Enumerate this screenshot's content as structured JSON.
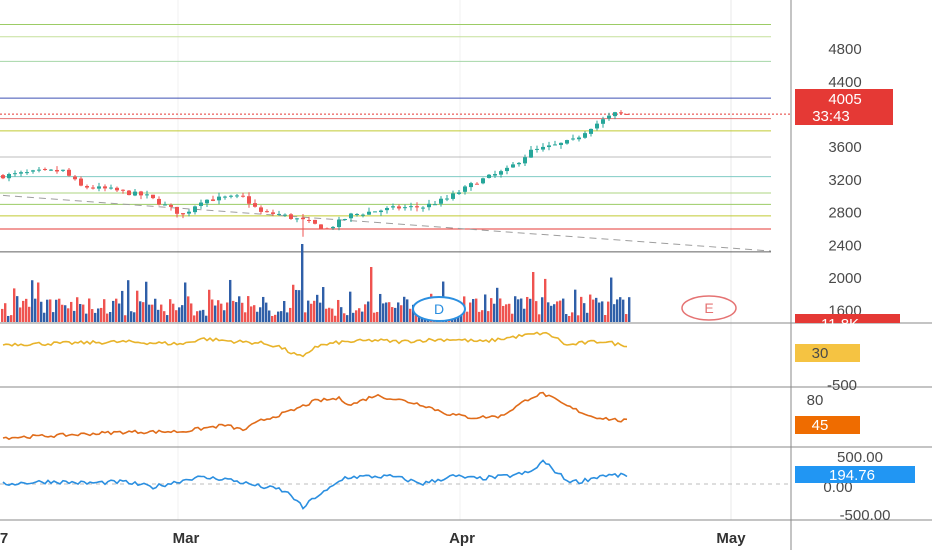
{
  "chart_data": [
    {
      "type": "candlestick",
      "pane": "price",
      "title": "",
      "y_ticks": [
        "4800",
        "4400",
        "3600",
        "3200",
        "2800",
        "2400",
        "2000",
        "1600"
      ],
      "ylim": [
        1450,
        5400
      ],
      "x_ticks": [
        "7",
        "Mar",
        "Apr",
        "May"
      ],
      "last_price": "4005",
      "countdown": "33:43",
      "colors": {
        "up": "#26a69a",
        "down": "#ef5350",
        "last": "#e53935"
      },
      "horizontal_levels": [
        {
          "value": 5100,
          "color": "#9ccc65"
        },
        {
          "value": 4950,
          "color": "#c6e09c"
        },
        {
          "value": 4650,
          "color": "#a5d6a7"
        },
        {
          "value": 4200,
          "color": "#3f51b5"
        },
        {
          "value": 3950,
          "color": "#e57373"
        },
        {
          "value": 3800,
          "color": "#c0ca33"
        },
        {
          "value": 3480,
          "color": "#bdbdbd"
        },
        {
          "value": 3240,
          "color": "#80cbc4"
        },
        {
          "value": 3040,
          "color": "#aed581"
        },
        {
          "value": 2900,
          "color": "#9ccc65"
        },
        {
          "value": 2760,
          "color": "#c0ca33"
        },
        {
          "value": 2600,
          "color": "#e53935"
        },
        {
          "value": 2320,
          "color": "#616161"
        }
      ],
      "trendline": {
        "from": [
          0,
          3010
        ],
        "to": [
          104,
          2330
        ],
        "color": "#9e9e9e",
        "style": "dashed"
      },
      "ohlc_key_points": [
        [
          0,
          3250
        ],
        [
          6,
          3300
        ],
        [
          10,
          3310
        ],
        [
          13,
          3120
        ],
        [
          18,
          3080
        ],
        [
          24,
          3000
        ],
        [
          30,
          2770
        ],
        [
          33,
          2950
        ],
        [
          37,
          2980
        ],
        [
          40,
          2990
        ],
        [
          43,
          2800
        ],
        [
          46,
          2780
        ],
        [
          50,
          2700
        ],
        [
          54,
          2600
        ],
        [
          58,
          2770
        ],
        [
          62,
          2820
        ],
        [
          66,
          2860
        ],
        [
          70,
          2870
        ],
        [
          74,
          2970
        ],
        [
          79,
          3180
        ],
        [
          84,
          3320
        ],
        [
          88,
          3550
        ],
        [
          92,
          3620
        ],
        [
          95,
          3680
        ],
        [
          98,
          3850
        ],
        [
          102,
          4010
        ],
        [
          103,
          4005
        ]
      ]
    },
    {
      "type": "bar",
      "pane": "volume",
      "title": "",
      "last_value": "11.8K",
      "colors": {
        "up": "#2f5fa8",
        "down": "#ef5350"
      }
    },
    {
      "type": "line",
      "pane": "indicator-1",
      "title": "",
      "y_ticks": [
        "-500"
      ],
      "last_value": "30",
      "color": "#e8b32a",
      "ylim": [
        -100,
        90
      ],
      "key_points": [
        [
          0,
          32
        ],
        [
          10,
          35
        ],
        [
          20,
          40
        ],
        [
          30,
          33
        ],
        [
          33,
          50
        ],
        [
          38,
          42
        ],
        [
          43,
          36
        ],
        [
          46,
          25
        ],
        [
          48,
          5
        ],
        [
          50,
          -10
        ],
        [
          52,
          25
        ],
        [
          56,
          38
        ],
        [
          62,
          45
        ],
        [
          66,
          40
        ],
        [
          70,
          45
        ],
        [
          75,
          48
        ],
        [
          80,
          40
        ],
        [
          85,
          55
        ],
        [
          90,
          68
        ],
        [
          92,
          55
        ],
        [
          94,
          28
        ],
        [
          96,
          35
        ],
        [
          100,
          42
        ],
        [
          103,
          30
        ]
      ]
    },
    {
      "type": "line",
      "pane": "indicator-2",
      "title": "",
      "y_ticks": [
        "80"
      ],
      "last_value": "45",
      "color": "#e06c1a",
      "ylim": [
        5,
        95
      ],
      "key_points": [
        [
          0,
          18
        ],
        [
          10,
          22
        ],
        [
          20,
          27
        ],
        [
          30,
          28
        ],
        [
          37,
          38
        ],
        [
          40,
          30
        ],
        [
          43,
          45
        ],
        [
          48,
          60
        ],
        [
          52,
          76
        ],
        [
          56,
          80
        ],
        [
          58,
          70
        ],
        [
          62,
          85
        ],
        [
          66,
          78
        ],
        [
          70,
          70
        ],
        [
          74,
          56
        ],
        [
          78,
          50
        ],
        [
          83,
          52
        ],
        [
          88,
          82
        ],
        [
          90,
          88
        ],
        [
          94,
          68
        ],
        [
          98,
          52
        ],
        [
          103,
          45
        ]
      ]
    },
    {
      "type": "line",
      "pane": "indicator-3",
      "title": "",
      "y_ticks": [
        "500.00",
        "0.00",
        "-500.00"
      ],
      "last_value": "194.76",
      "color": "#2b8fe0",
      "ylim": [
        -800,
        800
      ],
      "key_points": [
        [
          0,
          0
        ],
        [
          8,
          60
        ],
        [
          14,
          20
        ],
        [
          20,
          50
        ],
        [
          25,
          -70
        ],
        [
          28,
          20
        ],
        [
          32,
          150
        ],
        [
          37,
          120
        ],
        [
          43,
          -60
        ],
        [
          46,
          -120
        ],
        [
          48,
          -250
        ],
        [
          50,
          -550
        ],
        [
          52,
          -300
        ],
        [
          54,
          -150
        ],
        [
          57,
          150
        ],
        [
          60,
          170
        ],
        [
          65,
          170
        ],
        [
          70,
          10
        ],
        [
          75,
          180
        ],
        [
          79,
          120
        ],
        [
          84,
          180
        ],
        [
          88,
          270
        ],
        [
          90,
          520
        ],
        [
          92,
          300
        ],
        [
          94,
          80
        ],
        [
          96,
          50
        ],
        [
          100,
          200
        ],
        [
          103,
          194.76
        ]
      ]
    }
  ],
  "markers": {
    "dividend_label": "D",
    "earnings_label": "E"
  }
}
